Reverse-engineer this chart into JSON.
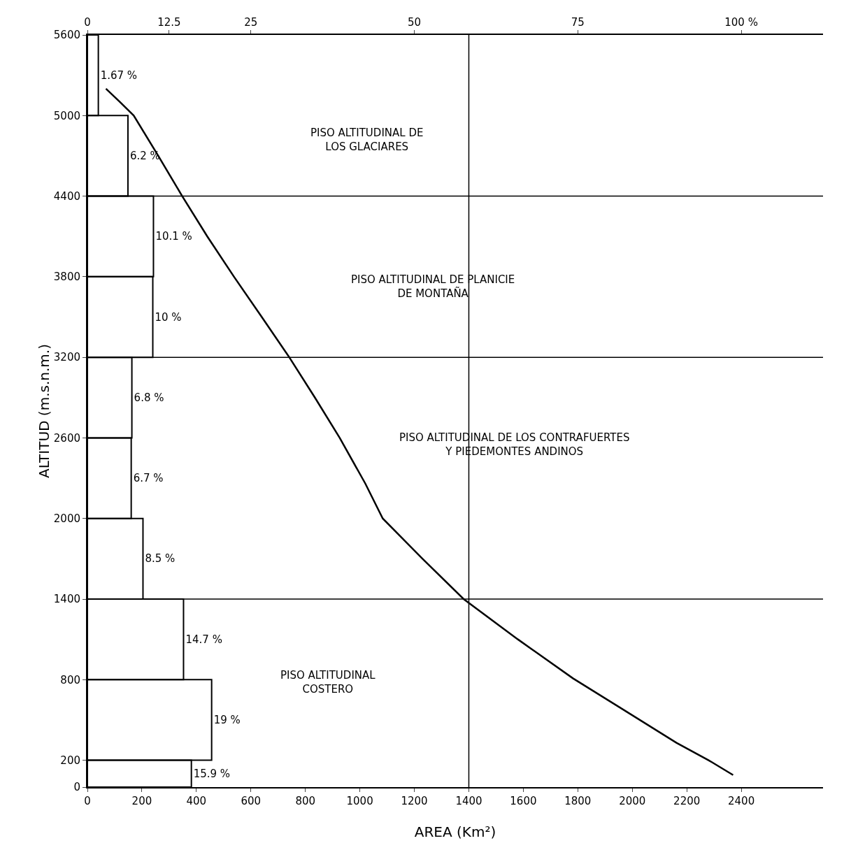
{
  "chart_data": {
    "type": "histogram",
    "orientation": "horizontal",
    "xlabel": "AREA (Km²)",
    "ylabel": "ALTITUD (m.s.n.m.)",
    "xlim": [
      0,
      2700
    ],
    "xticks": [
      0,
      200,
      400,
      600,
      800,
      1000,
      1200,
      1400,
      1600,
      1800,
      2000,
      2200,
      2400
    ],
    "x2lim": [
      0,
      112.5
    ],
    "x2ticks": [
      0,
      12.5,
      25,
      50,
      75,
      {
        "value": 100,
        "label": "100 %"
      }
    ],
    "ylim": [
      0,
      5600
    ],
    "yticks": [
      0,
      200,
      800,
      1400,
      2000,
      2600,
      3200,
      3800,
      4400,
      5000,
      5600
    ],
    "grid": false,
    "legend": false,
    "marker": "none",
    "line_style": "solid",
    "series": [
      {
        "axis": "x2",
        "color": "#000000",
        "bins": [
          0,
          200,
          800,
          1400,
          2000,
          2600,
          3200,
          3800,
          4400,
          5000,
          5600
        ],
        "values": [
          15.9,
          19,
          14.7,
          8.5,
          6.7,
          6.8,
          10,
          10.1,
          6.2,
          1.67
        ],
        "value_labels": [
          "15.9 %",
          "19 %",
          "14.7 %",
          "8.5 %",
          "6.7 %",
          "6.8 %",
          "10 %",
          "10.1 %",
          "6.2 %",
          "1.67 %"
        ]
      },
      {
        "type": "line",
        "color": "#000000",
        "x": [
          5200,
          5100,
          5000,
          4700,
          4400,
          4100,
          3800,
          3500,
          3200,
          2900,
          2600,
          2260,
          2000,
          1700,
          1400,
          1100,
          810,
          560,
          330,
          200,
          90
        ],
        "values": [
          68,
          120,
          170,
          260,
          348,
          440,
          538,
          640,
          741,
          835,
          926,
          1020,
          1084,
          1230,
          1381,
          1580,
          1782,
          1980,
          2162,
          2280,
          2370
        ]
      }
    ],
    "ref_lines": [
      {
        "axis": "y",
        "value": 4400
      },
      {
        "axis": "y",
        "value": 3200
      },
      {
        "axis": "y",
        "value": 1400
      },
      {
        "axis": "x",
        "value": 1400
      }
    ],
    "annotations": [
      "PISO ALTITUDINAL DE\nLOS GLACIARES",
      "PISO ALTITUDINAL DE PLANICIE\nDE MONTAÑA",
      "PISO ALTITUDINAL DE LOS CONTRAFUERTES\nY PIEDEMONTES ANDINOS",
      "PISO ALTITUDINAL\nCOSTERO"
    ]
  }
}
